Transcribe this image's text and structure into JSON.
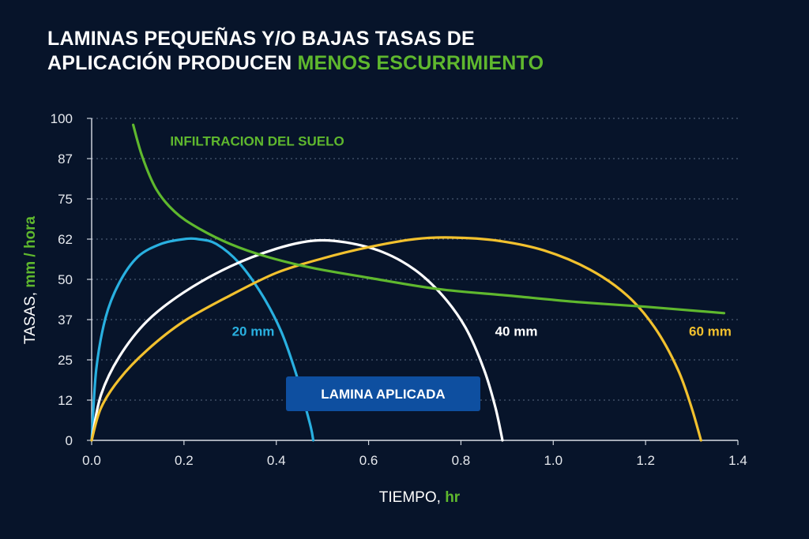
{
  "title": {
    "line1": "LAMINAS PEQUEÑAS Y/O BAJAS TASAS DE",
    "line2_prefix": "APLICACIÓN PRODUCEN ",
    "line2_accent": "MENOS ESCURRIMIENTO"
  },
  "colors": {
    "background": "#07142a",
    "accent": "#5fb82e",
    "blue": "#29b0e0",
    "white": "#ffffff",
    "yellow": "#f2c12e",
    "green": "#5fb82e",
    "box": "#0e4fa0"
  },
  "chart_data": {
    "type": "line",
    "xlabel_prefix": "TIEMPO, ",
    "xlabel_unit": "hr",
    "ylabel_prefix": "TASAS, ",
    "ylabel_unit": "mm / hora",
    "xlim": [
      0,
      1.4
    ],
    "ylim": [
      0,
      100
    ],
    "xticks": [
      "0.0",
      "0.2",
      "0.4",
      "0.6",
      "0.8",
      "1.0",
      "1.2",
      "1.4"
    ],
    "xtick_values": [
      0,
      0.2,
      0.4,
      0.6,
      0.8,
      1.0,
      1.2,
      1.4
    ],
    "yticks": [
      "0",
      "12",
      "25",
      "37",
      "50",
      "62",
      "75",
      "87",
      "100"
    ],
    "ytick_values": [
      0,
      12.5,
      25,
      37.5,
      50,
      62.5,
      75,
      87.5,
      100
    ],
    "grid": "horizontal dotted",
    "series": [
      {
        "name": "20 mm",
        "color": "#29b0e0",
        "x": [
          0,
          0.01,
          0.03,
          0.06,
          0.1,
          0.15,
          0.2,
          0.23,
          0.27,
          0.32,
          0.37,
          0.41,
          0.44,
          0.46,
          0.475,
          0.48
        ],
        "y": [
          0,
          22,
          38,
          49,
          57,
          61,
          62.5,
          62.5,
          61,
          55,
          45,
          34,
          22,
          12,
          4,
          0
        ]
      },
      {
        "name": "40 mm",
        "color": "#ffffff",
        "x": [
          0,
          0.02,
          0.06,
          0.12,
          0.2,
          0.3,
          0.4,
          0.48,
          0.55,
          0.63,
          0.7,
          0.76,
          0.81,
          0.85,
          0.875,
          0.89
        ],
        "y": [
          0,
          14,
          26,
          37,
          46,
          54,
          59.5,
          62,
          61.5,
          58.5,
          53,
          45,
          35,
          22,
          10,
          0
        ]
      },
      {
        "name": "60 mm",
        "color": "#f2c12e",
        "x": [
          0,
          0.02,
          0.06,
          0.12,
          0.2,
          0.3,
          0.4,
          0.5,
          0.6,
          0.7,
          0.78,
          0.88,
          0.98,
          1.08,
          1.16,
          1.22,
          1.27,
          1.3,
          1.32
        ],
        "y": [
          0,
          10,
          19,
          28,
          37,
          45,
          52,
          56.5,
          60,
          62.5,
          63,
          62,
          59,
          53,
          45,
          35,
          22,
          10,
          0
        ]
      },
      {
        "name": "INFILTRACION DEL SUELO",
        "color": "#5fb82e",
        "x": [
          0.09,
          0.11,
          0.14,
          0.18,
          0.23,
          0.3,
          0.38,
          0.48,
          0.6,
          0.75,
          0.9,
          1.05,
          1.2,
          1.37
        ],
        "y": [
          98,
          88,
          78,
          71,
          66,
          61,
          57,
          53.5,
          50.5,
          47,
          45,
          43,
          41.5,
          39.5
        ]
      }
    ],
    "labels": [
      {
        "text": "20 mm",
        "x": 0.35,
        "y": 32.5,
        "color": "#29b0e0"
      },
      {
        "text": "40 mm",
        "x": 0.92,
        "y": 32.5,
        "color": "#ffffff"
      },
      {
        "text": "60 mm",
        "x": 1.34,
        "y": 32.5,
        "color": "#f2c12e"
      },
      {
        "text": "INFILTRACION DEL SUELO",
        "x": 0.17,
        "y": 91.5,
        "color": "#5fb82e"
      }
    ],
    "legend_box_text": "LAMINA APLICADA"
  }
}
